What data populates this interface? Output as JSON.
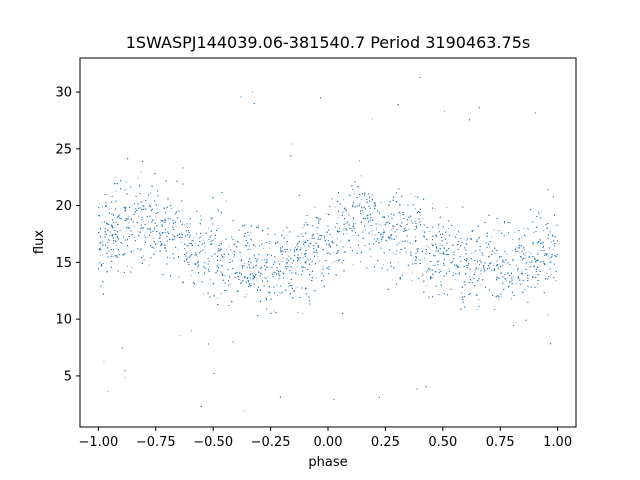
{
  "chart_data": {
    "type": "scatter",
    "title": "1SWASPJ144039.06-381540.7 Period 3190463.75s",
    "xlabel": "phase",
    "ylabel": "flux",
    "xlim": [
      -1.08,
      1.08
    ],
    "ylim": [
      0.5,
      33.0
    ],
    "xticks": [
      -1.0,
      -0.75,
      -0.5,
      -0.25,
      0.0,
      0.25,
      0.5,
      0.75,
      1.0
    ],
    "xtick_labels": [
      "−1.00",
      "−0.75",
      "−0.50",
      "−0.25",
      "0.00",
      "0.25",
      "0.50",
      "0.75",
      "1.00"
    ],
    "yticks": [
      5,
      10,
      15,
      20,
      25,
      30
    ],
    "ytick_labels": [
      "5",
      "10",
      "15",
      "20",
      "25",
      "30"
    ],
    "grid": false,
    "legend": "none",
    "marker_color": "#1f77b4",
    "series": [
      {
        "x_range": [
          -1.0,
          1.0
        ],
        "profile": {
          "phase": [
            0.0,
            0.05,
            0.1,
            0.15,
            0.2,
            0.25,
            0.3,
            0.35,
            0.4,
            0.45,
            0.5,
            0.55,
            0.6,
            0.65,
            0.7,
            0.75,
            0.8,
            0.85,
            0.9,
            0.95,
            1.0
          ],
          "median_flux": [
            16.5,
            17.5,
            18.5,
            19.0,
            18.5,
            18.0,
            18.0,
            17.5,
            17.0,
            16.0,
            16.0,
            15.5,
            15.0,
            15.0,
            14.5,
            14.5,
            15.0,
            15.0,
            15.5,
            16.0,
            16.5
          ]
        },
        "flux_range": [
          1.8,
          31.5
        ]
      }
    ]
  }
}
